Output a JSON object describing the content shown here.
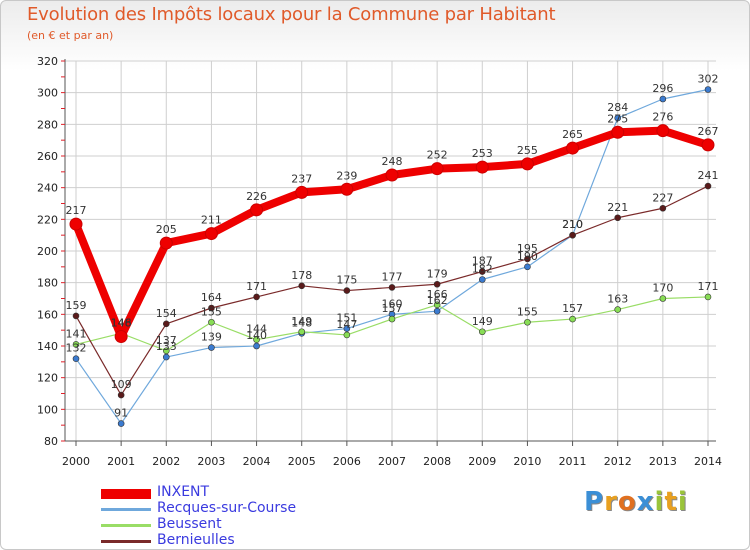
{
  "header": {
    "title": "Evolution des Impôts locaux pour la Commune par Habitant",
    "subtitle": "(en € et par an)"
  },
  "logo": {
    "letters": [
      "P",
      "r",
      "o",
      "x",
      "i",
      "t",
      "i"
    ],
    "colors": [
      "#3b8fd6",
      "#e8a020",
      "#e07020",
      "#3b8fd6",
      "#9ac43a",
      "#e8a020",
      "#9ac43a"
    ]
  },
  "colors": {
    "title": "#e05a2a",
    "grid": "#cfcfcf",
    "axis": "#555555",
    "tick_marks": "#e0202a"
  },
  "chart_data": {
    "type": "line",
    "title": "Evolution des Impôts locaux pour la Commune par Habitant",
    "subtitle": "(en € et par an)",
    "xlabel": "",
    "ylabel": "",
    "x": [
      "2000",
      "2001",
      "2002",
      "2003",
      "2004",
      "2005",
      "2006",
      "2007",
      "2008",
      "2009",
      "2010",
      "2011",
      "2012",
      "2013",
      "2014"
    ],
    "ylim": [
      80,
      320
    ],
    "yticks": [
      80,
      100,
      120,
      140,
      160,
      180,
      200,
      220,
      240,
      260,
      280,
      300,
      320
    ],
    "grid": true,
    "legend_position": "bottom-left",
    "series": [
      {
        "name": "INXENT",
        "color": "#ee0000",
        "marker": "#ee0000",
        "width": 8,
        "radius": 6,
        "values": [
          217,
          146,
          205,
          211,
          226,
          237,
          239,
          248,
          252,
          253,
          255,
          265,
          275,
          276,
          267
        ]
      },
      {
        "name": "Recques-sur-Course",
        "color": "#6fa8dc",
        "marker": "#3b7bd0",
        "width": 1.2,
        "radius": 3,
        "values": [
          132,
          91,
          133,
          139,
          140,
          148,
          151,
          160,
          162,
          182,
          190,
          210,
          284,
          296,
          302
        ]
      },
      {
        "name": "Beussent",
        "color": "#99dd66",
        "marker": "#88dd55",
        "width": 1.2,
        "radius": 3,
        "values": [
          141,
          148,
          137,
          155,
          144,
          149,
          147,
          157,
          166,
          149,
          155,
          157,
          163,
          170,
          171
        ]
      },
      {
        "name": "Bernieulles",
        "color": "#7a2a2a",
        "marker": "#5a1a1a",
        "width": 1.2,
        "radius": 3,
        "values": [
          159,
          109,
          154,
          164,
          171,
          178,
          175,
          177,
          179,
          187,
          195,
          210,
          221,
          227,
          241
        ]
      }
    ]
  }
}
